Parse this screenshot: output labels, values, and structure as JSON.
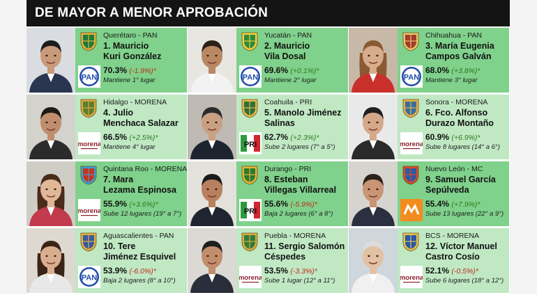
{
  "header": {
    "title": "DE MAYOR A MENOR APROBACIÓN"
  },
  "colors": {
    "green_dark": "#7fd18b",
    "green_light": "#bfe8c3",
    "positive": "#2e7a1a",
    "negative": "#c2281d",
    "pan": "#1f4aa8",
    "morena": "#8b1c2c",
    "pri": "#d0262d",
    "mc": "#f28c1e"
  },
  "governors": [
    {
      "state": "Querétaro - PAN",
      "name1": "1. Mauricio",
      "name2": "Kuri González",
      "approval": "70.3%",
      "change": "(-1.9%)*",
      "trend": "neg",
      "note": "Mantiene 1° lugar",
      "party": "PAN",
      "party_icon": "pan-logo-icon",
      "seal_icon": "queretaro-seal-icon"
    },
    {
      "state": "Yucatán - PAN",
      "name1": "2. Mauricio",
      "name2": "Vila Dosal",
      "approval": "69.6%",
      "change": "(+0.1%)*",
      "trend": "pos",
      "note": "Mantiene 2° lugar",
      "party": "PAN",
      "party_icon": "pan-logo-icon",
      "seal_icon": "yucatan-seal-icon"
    },
    {
      "state": "Chihuahua - PAN",
      "name1": "3. María Eugenia",
      "name2": "Campos Galván",
      "approval": "68.0%",
      "change": "(+3.8%)*",
      "trend": "pos",
      "note": "Mantiene 3° lugar",
      "party": "PAN",
      "party_icon": "pan-logo-icon",
      "seal_icon": "chihuahua-seal-icon"
    },
    {
      "state": "Hidalgo - MORENA",
      "name1": "4. Julio",
      "name2": "Menchaca Salazar",
      "approval": "66.5%",
      "change": "(+2.5%)*",
      "trend": "pos",
      "note": "Mantiene 4° lugar",
      "party": "morena",
      "party_icon": "morena-logo-icon",
      "seal_icon": "hidalgo-seal-icon"
    },
    {
      "state": "Coahuila - PRI",
      "name1": "5. Manolo Jiménez",
      "name2": "Salinas",
      "approval": "62.7%",
      "change": "(+2.3%)*",
      "trend": "pos",
      "note": "Sube 2 lugares (7° a 5°)",
      "party": "PRI",
      "party_icon": "pri-logo-icon",
      "seal_icon": "coahuila-seal-icon"
    },
    {
      "state": "Sonora - MORENA",
      "name1": "6. Fco. Alfonso",
      "name2": "Durazo Montaño",
      "approval": "60.9%",
      "change": "(+6.9%)*",
      "trend": "pos",
      "note": "Sube 8 lugares (14° a 6°)",
      "party": "morena",
      "party_icon": "morena-logo-icon",
      "seal_icon": "sonora-seal-icon"
    },
    {
      "state": "Quintana Roo - MORENA",
      "name1": "7. Mara",
      "name2": "Lezama Espinosa",
      "approval": "55.9%",
      "change": "(+3.6%)*",
      "trend": "pos",
      "note": "Sube 12 lugares (19° a 7°)",
      "party": "morena",
      "party_icon": "morena-logo-icon",
      "seal_icon": "quintana-roo-seal-icon"
    },
    {
      "state": "Durango - PRI",
      "name1": "8. Esteban",
      "name2": "Villegas Villarreal",
      "approval": "55.6%",
      "change": "(-5.9%)*",
      "trend": "neg",
      "note": "Baja 2 lugares (6° a 8°)",
      "party": "PRI",
      "party_icon": "pri-logo-icon",
      "seal_icon": "durango-seal-icon"
    },
    {
      "state": "Nuevo León - MC",
      "name1": "9. Samuel García",
      "name2": "Sepúlveda",
      "approval": "55.4%",
      "change": "(+7.9%)*",
      "trend": "pos",
      "note": "Sube 13 lugares (22° a 9°)",
      "party": "MC",
      "party_icon": "mc-logo-icon",
      "seal_icon": "nuevo-leon-seal-icon"
    },
    {
      "state": "Aguascalientes - PAN",
      "name1": "10. Tere",
      "name2": "Jiménez Esquivel",
      "approval": "53.9%",
      "change": "(-6.0%)*",
      "trend": "neg",
      "note": "Baja 2 lugares (8° a 10°)",
      "party": "PAN",
      "party_icon": "pan-logo-icon",
      "seal_icon": "aguascalientes-seal-icon"
    },
    {
      "state": "Puebla - MORENA",
      "name1": "11. Sergio Salomón",
      "name2": "Céspedes",
      "approval": "53.5%",
      "change": "(-3.3%)*",
      "trend": "neg",
      "note": "Sube 1 lugar (12° a 11°)",
      "party": "morena",
      "party_icon": "morena-logo-icon",
      "seal_icon": "puebla-seal-icon"
    },
    {
      "state": "BCS - MORENA",
      "name1": "12. Víctor Manuel",
      "name2": "Castro Cosío",
      "approval": "52.1%",
      "change": "(-0.5%)*",
      "trend": "neg",
      "note": "Sube 6 lugares (18° a 12°)",
      "party": "morena",
      "party_icon": "morena-logo-icon",
      "seal_icon": "bcs-seal-icon"
    }
  ]
}
